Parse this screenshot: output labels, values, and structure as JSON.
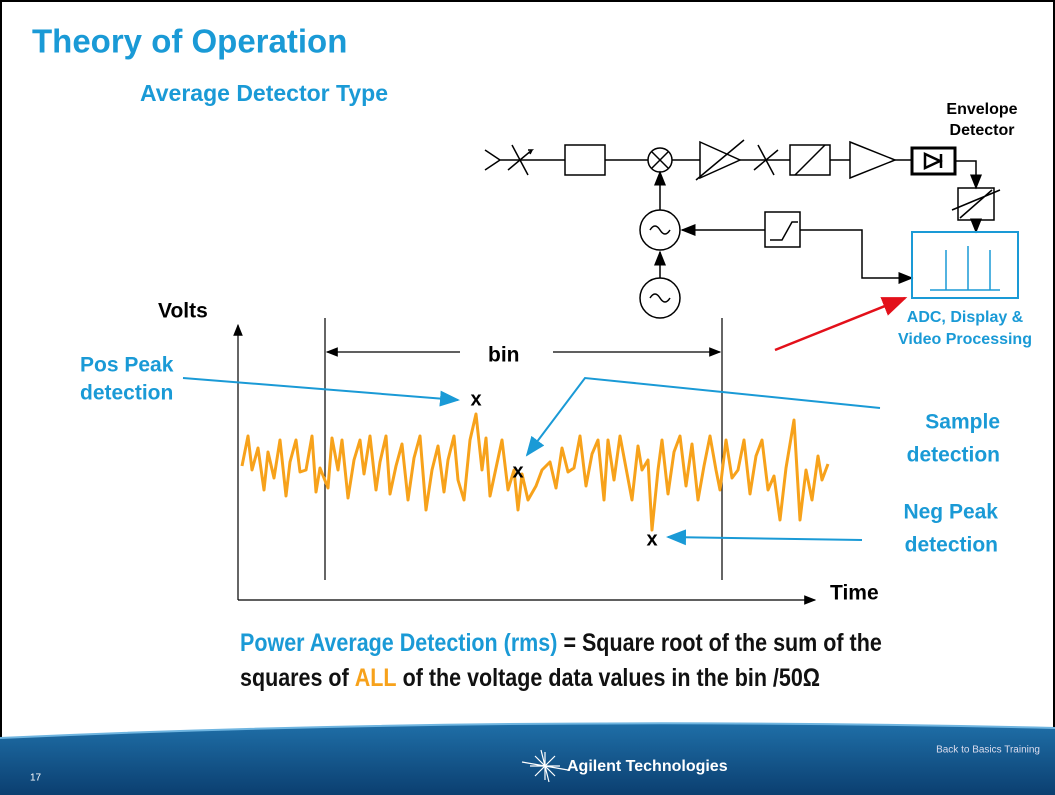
{
  "title": "Theory of Operation",
  "subtitle": "Average Detector Type",
  "block_diagram": {
    "envelope_detector_label": [
      "Envelope",
      "Detector"
    ],
    "adc_label": [
      "ADC, Display &",
      "Video Processing"
    ]
  },
  "plot": {
    "y_axis_label": "Volts",
    "x_axis_label": "Time",
    "bin_label": "bin",
    "markers": [
      "x",
      "x",
      "x"
    ],
    "pos_peak_label": [
      "Pos Peak",
      "detection"
    ],
    "sample_label": [
      "Sample",
      "detection"
    ],
    "neg_peak_label": [
      "Neg Peak",
      "detection"
    ]
  },
  "formula": {
    "term": "Power Average Detection (rms)",
    "line_1": "= Square root of the sum of the",
    "line_2_start": "squares of",
    "highlight": "ALL",
    "line_2_end": "of the voltage data values in the bin /50Ω"
  },
  "footer": {
    "page_number": "17",
    "company": "Agilent Technologies",
    "course": "Back to Basics Training"
  }
}
